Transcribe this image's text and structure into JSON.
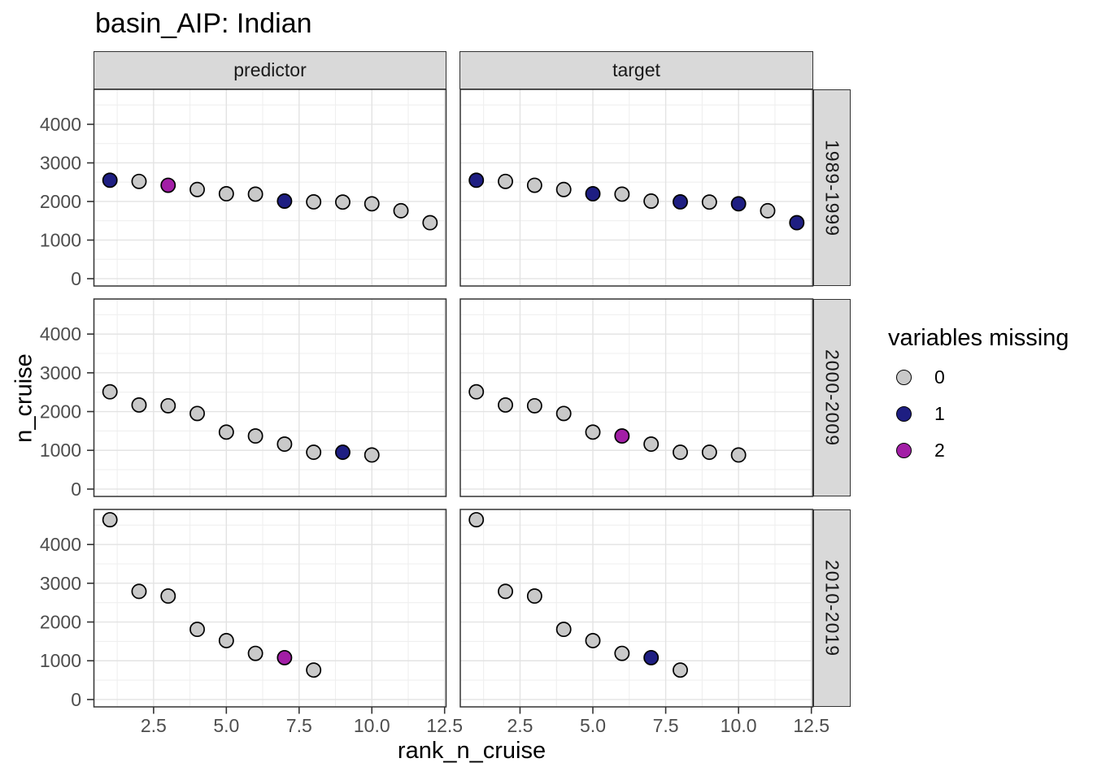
{
  "colors": {
    "panel_bg": "#ffffff",
    "strip_bg": "#d9d9d9",
    "grid_major": "#e3e3e3",
    "grid_minor": "#efefef",
    "panel_border": "#333333",
    "tick_mark": "#333333",
    "tick_text": "#4d4d4d",
    "point_stroke": "#000000"
  },
  "chart_data": {
    "type": "scatter",
    "title": "basin_AIP: Indian",
    "xlabel": "rank_n_cruise",
    "ylabel": "n_cruise",
    "facet_cols": [
      "predictor",
      "target"
    ],
    "facet_rows": [
      "1989-1999",
      "2000-2009",
      "2010-2019"
    ],
    "legend": {
      "title": "variables missing",
      "items": [
        {
          "label": "0",
          "value": 0,
          "color": "#c9c9c9"
        },
        {
          "label": "1",
          "value": 1,
          "color": "#1e1e82"
        },
        {
          "label": "2",
          "value": 2,
          "color": "#a21ea6"
        }
      ]
    },
    "x_ticks": [
      {
        "label": "2.5",
        "value": 2.5
      },
      {
        "label": "5.0",
        "value": 5.0
      },
      {
        "label": "7.5",
        "value": 7.5
      },
      {
        "label": "10.0",
        "value": 10.0
      },
      {
        "label": "12.5",
        "value": 12.5
      }
    ],
    "y_ticks": [
      {
        "label": "0",
        "value": 0
      },
      {
        "label": "1000",
        "value": 1000
      },
      {
        "label": "2000",
        "value": 2000
      },
      {
        "label": "3000",
        "value": 3000
      },
      {
        "label": "4000",
        "value": 4000
      }
    ],
    "xlim": [
      0.45,
      12.55
    ],
    "ylim": [
      -190,
      4905
    ],
    "grid": {
      "x_minor_step": 1.25,
      "y_minor_step": 500,
      "x_major_every": 2.5,
      "y_major_every": 1000
    },
    "panels": [
      {
        "col": "predictor",
        "row": "1989-1999",
        "points": [
          {
            "x": 1,
            "y": 2550,
            "missing": 1
          },
          {
            "x": 2,
            "y": 2520,
            "missing": 0
          },
          {
            "x": 3,
            "y": 2420,
            "missing": 2
          },
          {
            "x": 4,
            "y": 2310,
            "missing": 0
          },
          {
            "x": 5,
            "y": 2200,
            "missing": 0
          },
          {
            "x": 6,
            "y": 2190,
            "missing": 0
          },
          {
            "x": 7,
            "y": 2010,
            "missing": 1
          },
          {
            "x": 8,
            "y": 1990,
            "missing": 0
          },
          {
            "x": 9,
            "y": 1985,
            "missing": 0
          },
          {
            "x": 10,
            "y": 1940,
            "missing": 0
          },
          {
            "x": 11,
            "y": 1760,
            "missing": 0
          },
          {
            "x": 12,
            "y": 1450,
            "missing": 0
          }
        ]
      },
      {
        "col": "target",
        "row": "1989-1999",
        "points": [
          {
            "x": 1,
            "y": 2550,
            "missing": 1
          },
          {
            "x": 2,
            "y": 2520,
            "missing": 0
          },
          {
            "x": 3,
            "y": 2420,
            "missing": 0
          },
          {
            "x": 4,
            "y": 2310,
            "missing": 0
          },
          {
            "x": 5,
            "y": 2200,
            "missing": 1
          },
          {
            "x": 6,
            "y": 2190,
            "missing": 0
          },
          {
            "x": 7,
            "y": 2010,
            "missing": 0
          },
          {
            "x": 8,
            "y": 1990,
            "missing": 1
          },
          {
            "x": 9,
            "y": 1985,
            "missing": 0
          },
          {
            "x": 10,
            "y": 1940,
            "missing": 1
          },
          {
            "x": 11,
            "y": 1760,
            "missing": 0
          },
          {
            "x": 12,
            "y": 1450,
            "missing": 1
          }
        ]
      },
      {
        "col": "predictor",
        "row": "2000-2009",
        "points": [
          {
            "x": 1,
            "y": 2510,
            "missing": 0
          },
          {
            "x": 2,
            "y": 2170,
            "missing": 0
          },
          {
            "x": 3,
            "y": 2150,
            "missing": 0
          },
          {
            "x": 4,
            "y": 1950,
            "missing": 0
          },
          {
            "x": 5,
            "y": 1470,
            "missing": 0
          },
          {
            "x": 6,
            "y": 1370,
            "missing": 0
          },
          {
            "x": 7,
            "y": 1160,
            "missing": 0
          },
          {
            "x": 8,
            "y": 950,
            "missing": 0
          },
          {
            "x": 9,
            "y": 950,
            "missing": 1
          },
          {
            "x": 10,
            "y": 880,
            "missing": 0
          }
        ]
      },
      {
        "col": "target",
        "row": "2000-2009",
        "points": [
          {
            "x": 1,
            "y": 2510,
            "missing": 0
          },
          {
            "x": 2,
            "y": 2170,
            "missing": 0
          },
          {
            "x": 3,
            "y": 2150,
            "missing": 0
          },
          {
            "x": 4,
            "y": 1950,
            "missing": 0
          },
          {
            "x": 5,
            "y": 1470,
            "missing": 0
          },
          {
            "x": 6,
            "y": 1370,
            "missing": 2
          },
          {
            "x": 7,
            "y": 1160,
            "missing": 0
          },
          {
            "x": 8,
            "y": 950,
            "missing": 0
          },
          {
            "x": 9,
            "y": 950,
            "missing": 0
          },
          {
            "x": 10,
            "y": 880,
            "missing": 0
          }
        ]
      },
      {
        "col": "predictor",
        "row": "2010-2019",
        "points": [
          {
            "x": 1,
            "y": 4640,
            "missing": 0
          },
          {
            "x": 2,
            "y": 2790,
            "missing": 0
          },
          {
            "x": 3,
            "y": 2670,
            "missing": 0
          },
          {
            "x": 4,
            "y": 1810,
            "missing": 0
          },
          {
            "x": 5,
            "y": 1520,
            "missing": 0
          },
          {
            "x": 6,
            "y": 1190,
            "missing": 0
          },
          {
            "x": 7,
            "y": 1080,
            "missing": 2
          },
          {
            "x": 8,
            "y": 760,
            "missing": 0
          }
        ]
      },
      {
        "col": "target",
        "row": "2010-2019",
        "points": [
          {
            "x": 1,
            "y": 4640,
            "missing": 0
          },
          {
            "x": 2,
            "y": 2790,
            "missing": 0
          },
          {
            "x": 3,
            "y": 2670,
            "missing": 0
          },
          {
            "x": 4,
            "y": 1810,
            "missing": 0
          },
          {
            "x": 5,
            "y": 1520,
            "missing": 0
          },
          {
            "x": 6,
            "y": 1190,
            "missing": 0
          },
          {
            "x": 7,
            "y": 1080,
            "missing": 1
          },
          {
            "x": 8,
            "y": 760,
            "missing": 0
          }
        ]
      }
    ]
  }
}
